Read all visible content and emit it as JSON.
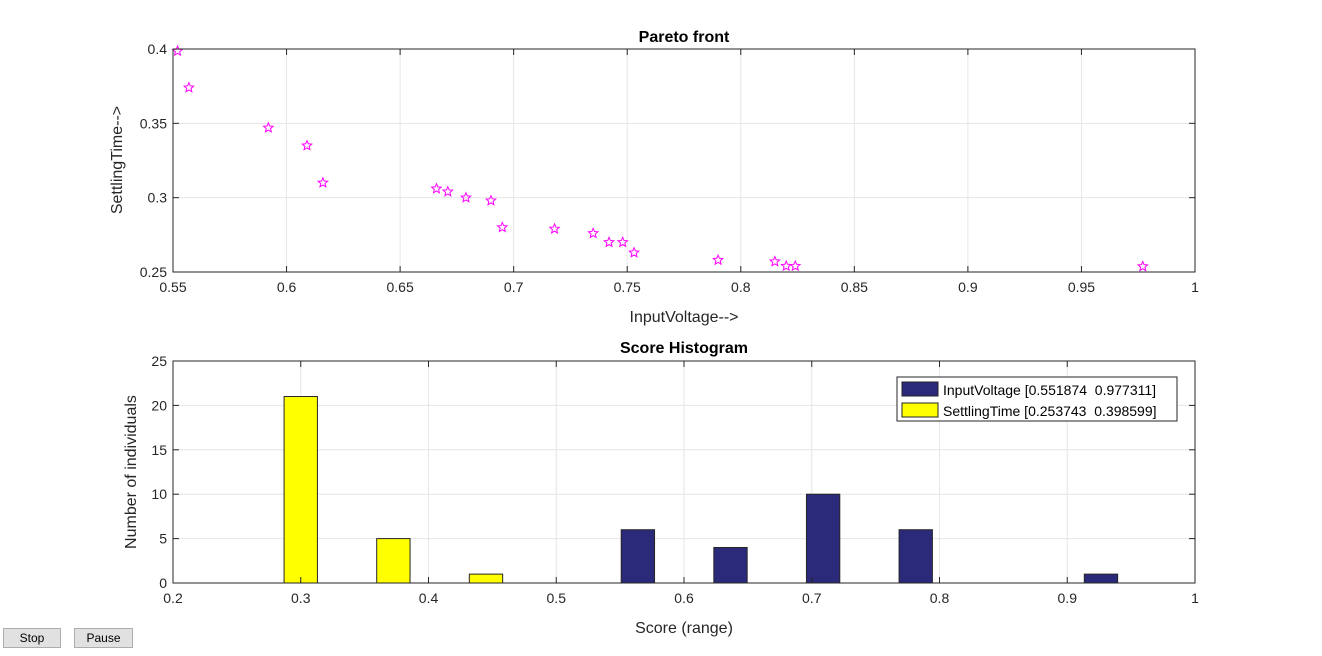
{
  "colors": {
    "pareto_marker": "#ff00ff",
    "input_voltage": "#2b2a7a",
    "settling_time": "#ffff00",
    "grid": "#e6e6e6"
  },
  "buttons": {
    "stop": "Stop",
    "pause": "Pause"
  },
  "chart_data": [
    {
      "type": "scatter",
      "title": "Pareto front",
      "xlabel": "InputVoltage-->",
      "ylabel": "SettlingTime-->",
      "xlim": [
        0.55,
        1
      ],
      "ylim": [
        0.25,
        0.4
      ],
      "xticks": [
        "0.55",
        "0.6",
        "0.65",
        "0.7",
        "0.75",
        "0.8",
        "0.85",
        "0.9",
        "0.95",
        "1"
      ],
      "yticks": [
        "0.25",
        "0.3",
        "0.35",
        "0.4"
      ],
      "grid": true,
      "marker": "pentagram",
      "points": [
        [
          0.552,
          0.3986
        ],
        [
          0.557,
          0.374
        ],
        [
          0.592,
          0.347
        ],
        [
          0.609,
          0.335
        ],
        [
          0.616,
          0.31
        ],
        [
          0.666,
          0.306
        ],
        [
          0.671,
          0.304
        ],
        [
          0.679,
          0.3
        ],
        [
          0.69,
          0.298
        ],
        [
          0.695,
          0.28
        ],
        [
          0.718,
          0.279
        ],
        [
          0.735,
          0.276
        ],
        [
          0.742,
          0.27
        ],
        [
          0.748,
          0.27
        ],
        [
          0.753,
          0.263
        ],
        [
          0.79,
          0.258
        ],
        [
          0.815,
          0.257
        ],
        [
          0.82,
          0.254
        ],
        [
          0.824,
          0.254
        ],
        [
          0.977,
          0.2537
        ]
      ]
    },
    {
      "type": "bar",
      "title": "Score Histogram",
      "xlabel": "Score (range)",
      "ylabel": "Number of individuals",
      "xlim": [
        0.2,
        1
      ],
      "ylim": [
        0,
        25
      ],
      "xticks": [
        "0.2",
        "0.3",
        "0.4",
        "0.5",
        "0.6",
        "0.7",
        "0.8",
        "0.9",
        "1"
      ],
      "yticks": [
        "0",
        "5",
        "10",
        "15",
        "20",
        "25"
      ],
      "grid": true,
      "legend_position": "top-right",
      "bin_centers": [
        0.3,
        0.3725,
        0.445,
        0.5175,
        0.59,
        0.6625,
        0.735,
        0.8075,
        0.88,
        0.9525
      ],
      "series": [
        {
          "name": "InputVoltage [0.551874  0.977311]",
          "color": "#2b2a7a",
          "values": [
            0,
            0,
            0,
            0,
            6,
            4,
            10,
            6,
            0,
            1
          ]
        },
        {
          "name": "SettlingTime [0.253743  0.398599]",
          "color": "#ffff00",
          "values": [
            21,
            5,
            1,
            0,
            0,
            0,
            0,
            0,
            0,
            0
          ]
        }
      ]
    }
  ]
}
